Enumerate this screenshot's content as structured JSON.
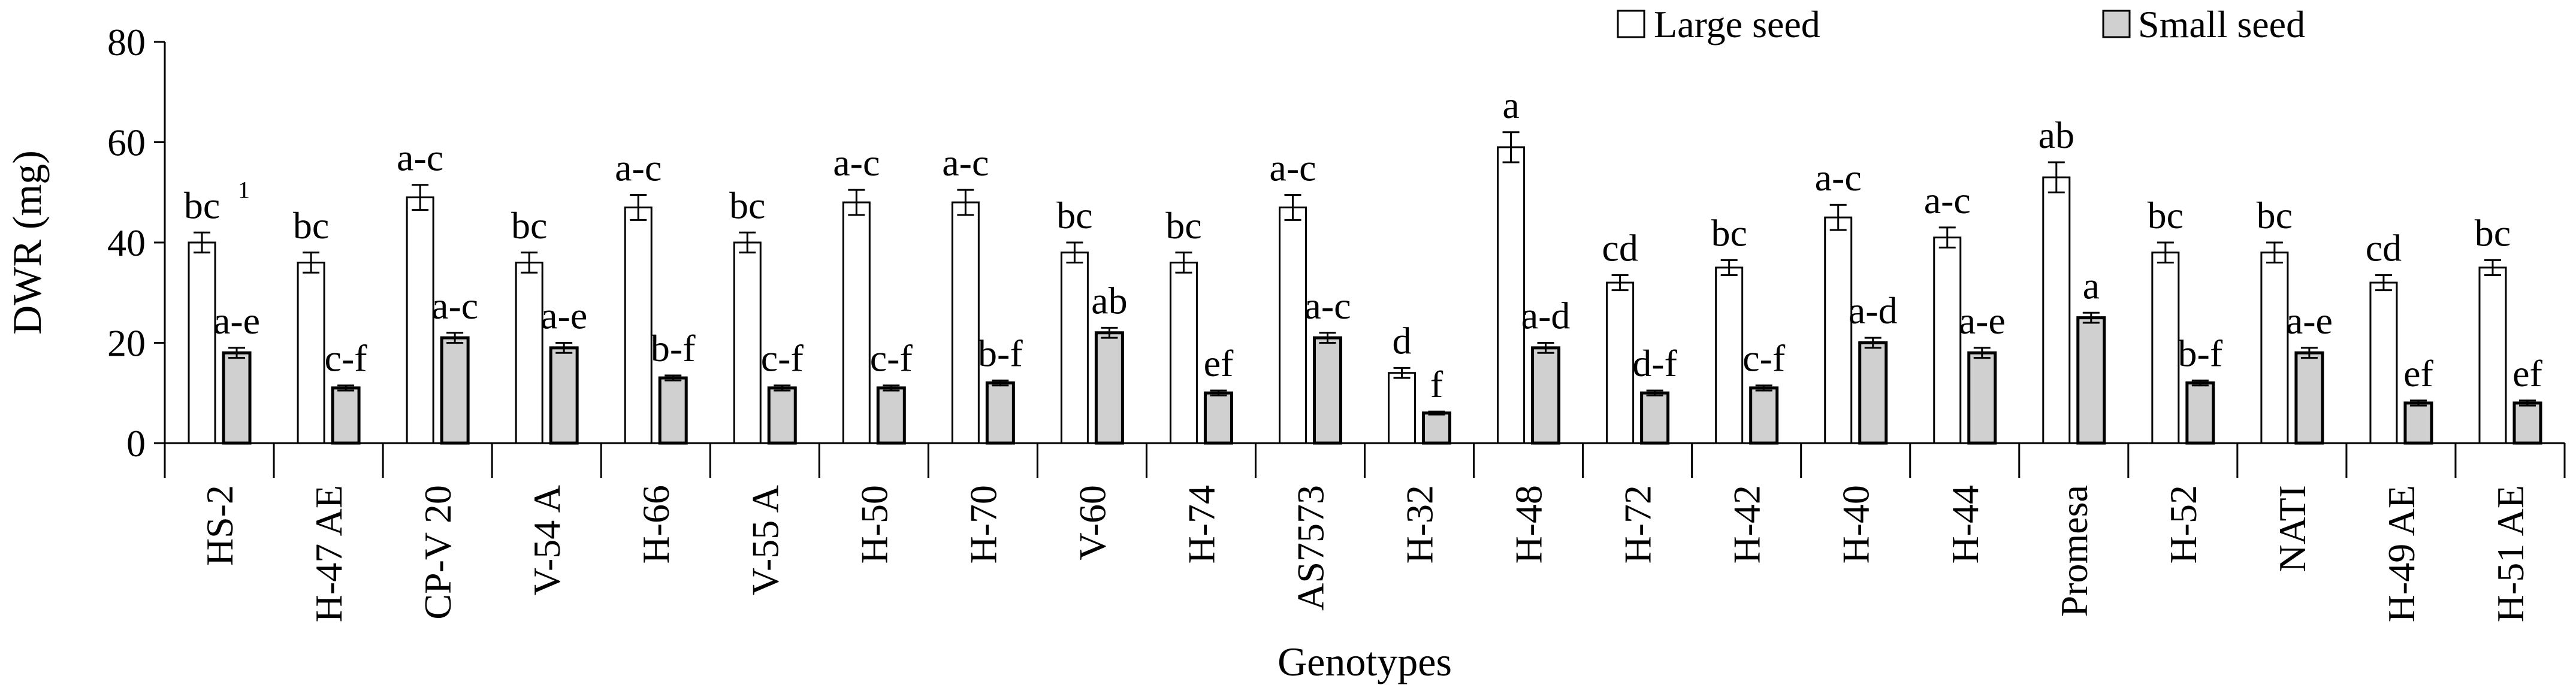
{
  "chart_data": {
    "type": "bar",
    "xlabel": "Genotypes",
    "ylabel": "DWR (mg)",
    "ylim": [
      0,
      80
    ],
    "yticks": [
      0,
      20,
      40,
      60,
      80
    ],
    "grid": false,
    "legend_position": "top-right",
    "footnote_marker": "1",
    "categories": [
      "HS-2",
      "H-47 AE",
      "CP-V 20",
      "V-54 A",
      "H-66",
      "V-55 A",
      "H-50",
      "H-70",
      "V-60",
      "H-74",
      "AS7573",
      "H-32",
      "H-48",
      "H-72",
      "H-42",
      "H-40",
      "H-44",
      "Promesa",
      "H-52",
      "NATI",
      "H-49 AE",
      "H-51 AE"
    ],
    "series": [
      {
        "name": "Large seed",
        "color": "#ffffff",
        "values": [
          40,
          36,
          49,
          36,
          47,
          40,
          48,
          48,
          38,
          36,
          47,
          14,
          59,
          32,
          35,
          45,
          41,
          53,
          38,
          38,
          32,
          35
        ],
        "errors": [
          2,
          2,
          2.5,
          2,
          2.5,
          2,
          2.5,
          2.5,
          2,
          2,
          2.5,
          1,
          3,
          1.5,
          1.5,
          2.5,
          2,
          3,
          2,
          2,
          1.5,
          1.5
        ],
        "labels": [
          "bc",
          "bc",
          "a-c",
          "bc",
          "a-c",
          "bc",
          "a-c",
          "a-c",
          "bc",
          "bc",
          "a-c",
          "d",
          "a",
          "cd",
          "bc",
          "a-c",
          "a-c",
          "ab",
          "bc",
          "bc",
          "cd",
          "bc"
        ]
      },
      {
        "name": "Small seed",
        "color": "#d0d0d0",
        "values": [
          18,
          11,
          21,
          19,
          13,
          11,
          11,
          12,
          22,
          10,
          21,
          6,
          19,
          10,
          11,
          20,
          18,
          25,
          12,
          18,
          8,
          8
        ],
        "errors": [
          1,
          0.5,
          1,
          1,
          0.5,
          0.5,
          0.5,
          0.5,
          1,
          0.5,
          1,
          0.3,
          1,
          0.5,
          0.5,
          1,
          1,
          1,
          0.5,
          1,
          0.5,
          0.5
        ],
        "labels": [
          "a-e",
          "c-f",
          "a-c",
          "a-e",
          "b-f",
          "c-f",
          "c-f",
          "b-f",
          "ab",
          "ef",
          "a-c",
          "f",
          "a-d",
          "d-f",
          "c-f",
          "a-d",
          "a-e",
          "a",
          "b-f",
          "a-e",
          "ef",
          "ef"
        ]
      }
    ]
  }
}
